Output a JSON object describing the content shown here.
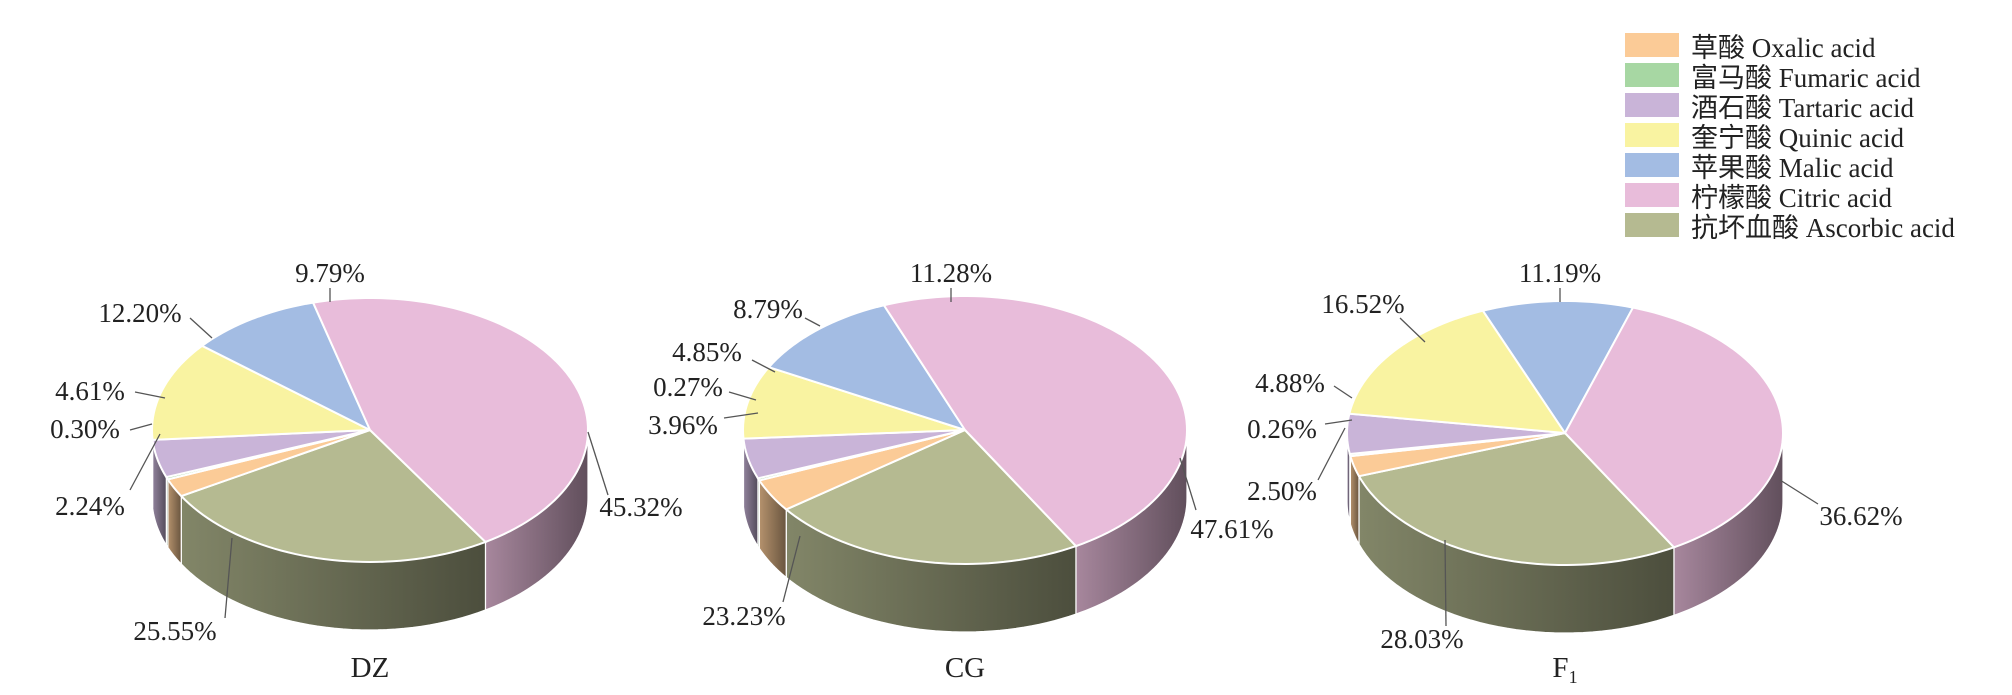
{
  "legend": [
    {
      "label": "草酸 Oxalic acid",
      "color": "#FBCB97"
    },
    {
      "label": "富马酸 Fumaric acid",
      "color": "#A7D7A3"
    },
    {
      "label": "酒石酸 Tartaric acid",
      "color": "#C9B4D8"
    },
    {
      "label": "奎宁酸 Quinic acid",
      "color": "#F9F3A1"
    },
    {
      "label": "苹果酸 Malic acid",
      "color": "#A3BCE3"
    },
    {
      "label": "柠檬酸 Citric acid",
      "color": "#E8BCDA"
    },
    {
      "label": "抗坏血酸 Ascorbic acid",
      "color": "#B5BA91"
    }
  ],
  "chart_data": [
    {
      "type": "pie",
      "title": "DZ",
      "categories": [
        "Oxalic acid",
        "Fumaric acid",
        "Tartaric acid",
        "Quinic acid",
        "Malic acid",
        "Citric acid",
        "Ascorbic acid"
      ],
      "values": [
        2.24,
        0.3,
        4.61,
        12.2,
        9.79,
        45.32,
        25.55
      ],
      "labels": [
        "2.24%",
        "0.30%",
        "4.61%",
        "12.20%",
        "9.79%",
        "45.32%",
        "25.55%"
      ]
    },
    {
      "type": "pie",
      "title": "CG",
      "categories": [
        "Oxalic acid",
        "Fumaric acid",
        "Tartaric acid",
        "Quinic acid",
        "Malic acid",
        "Citric acid",
        "Ascorbic acid"
      ],
      "values": [
        3.96,
        0.27,
        4.85,
        8.79,
        11.28,
        47.61,
        23.23
      ],
      "labels": [
        "3.96%",
        "0.27%",
        "4.85%",
        "8.79%",
        "11.28%",
        "47.61%",
        "23.23%"
      ]
    },
    {
      "type": "pie",
      "title": "F1",
      "title_main": "F",
      "title_sub": "1",
      "categories": [
        "Oxalic acid",
        "Fumaric acid",
        "Tartaric acid",
        "Quinic acid",
        "Malic acid",
        "Citric acid",
        "Ascorbic acid"
      ],
      "values": [
        2.5,
        0.26,
        4.88,
        16.52,
        11.19,
        36.62,
        28.03
      ],
      "labels": [
        "2.50%",
        "0.26%",
        "4.88%",
        "16.52%",
        "11.19%",
        "36.62%",
        "28.03%"
      ]
    }
  ]
}
